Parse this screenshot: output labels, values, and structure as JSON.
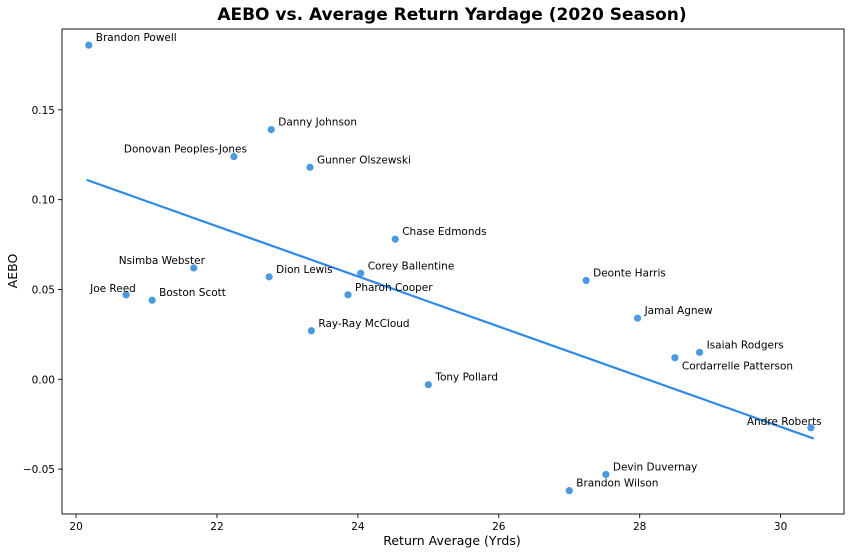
{
  "chart_data": {
    "type": "scatter",
    "title": "AEBO vs. Average Return Yardage (2020 Season)",
    "xlabel": "Return Average (Yrds)",
    "ylabel": "AEBO",
    "xlim": [
      19.8,
      30.9
    ],
    "ylim": [
      -0.075,
      0.195
    ],
    "xticks": [
      20,
      22,
      24,
      26,
      28,
      30
    ],
    "xtick_labels": [
      "20",
      "22",
      "24",
      "26",
      "28",
      "30"
    ],
    "yticks": [
      -0.05,
      0.0,
      0.05,
      0.1,
      0.15
    ],
    "ytick_labels": [
      "−0.05",
      "0.00",
      "0.05",
      "0.10",
      "0.15"
    ],
    "grid": false,
    "point_color": "#4a9ae0",
    "line_color": "#2e8ae6",
    "points": [
      {
        "label": "Brandon Powell",
        "x": 20.18,
        "y": 0.186
      },
      {
        "label": "Danny Johnson",
        "x": 22.77,
        "y": 0.139
      },
      {
        "label": "Donovan Peoples-Jones",
        "x": 22.24,
        "y": 0.124
      },
      {
        "label": "Gunner Olszewski",
        "x": 23.32,
        "y": 0.118
      },
      {
        "label": "Chase Edmonds",
        "x": 24.53,
        "y": 0.078
      },
      {
        "label": "Nsimba Webster",
        "x": 21.67,
        "y": 0.062
      },
      {
        "label": "Dion Lewis",
        "x": 22.74,
        "y": 0.057
      },
      {
        "label": "Corey Ballentine",
        "x": 24.04,
        "y": 0.059
      },
      {
        "label": "Deonte Harris",
        "x": 27.24,
        "y": 0.055
      },
      {
        "label": "Joe Reed",
        "x": 20.71,
        "y": 0.047
      },
      {
        "label": "Boston Scott",
        "x": 21.08,
        "y": 0.044
      },
      {
        "label": "Pharoh Cooper",
        "x": 23.86,
        "y": 0.047
      },
      {
        "label": "Ray-Ray McCloud",
        "x": 23.34,
        "y": 0.027
      },
      {
        "label": "Jamal Agnew",
        "x": 27.97,
        "y": 0.034
      },
      {
        "label": "Isaiah Rodgers",
        "x": 28.85,
        "y": 0.015
      },
      {
        "label": "Cordarrelle Patterson",
        "x": 28.5,
        "y": 0.012
      },
      {
        "label": "Tony Pollard",
        "x": 25.0,
        "y": -0.003
      },
      {
        "label": "Andre Roberts",
        "x": 30.43,
        "y": -0.027
      },
      {
        "label": "Devin Duvernay",
        "x": 27.52,
        "y": -0.053
      },
      {
        "label": "Brandon Wilson",
        "x": 27.0,
        "y": -0.062
      }
    ],
    "trendline": {
      "x": [
        20.15,
        30.47
      ],
      "y": [
        0.111,
        -0.033
      ]
    }
  }
}
